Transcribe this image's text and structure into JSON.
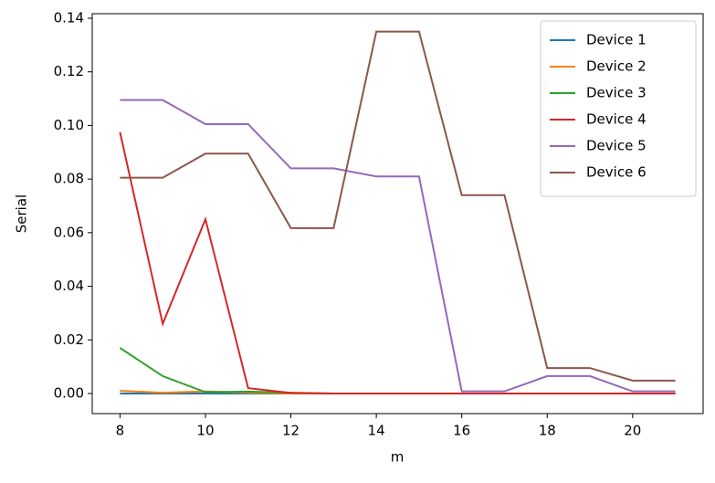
{
  "chart_data": {
    "type": "line",
    "x_label": "m",
    "y_label": "Serial",
    "x": [
      8,
      9,
      10,
      11,
      12,
      13,
      14,
      15,
      16,
      17,
      18,
      19,
      20,
      21
    ],
    "series": [
      {
        "name": "Device 1",
        "color": "#1f77b4",
        "values": [
          0,
          0,
          0,
          0,
          0,
          0,
          0,
          0,
          0,
          0,
          0,
          0,
          0,
          0
        ]
      },
      {
        "name": "Device 2",
        "color": "#ff7f0e",
        "values": [
          0.001,
          0.0003,
          0.0008,
          0.0003,
          0,
          0,
          0,
          0,
          0,
          0,
          0,
          0,
          0,
          0
        ]
      },
      {
        "name": "Device 3",
        "color": "#2ca02c",
        "values": [
          0.017,
          0.0065,
          0.0005,
          0.0007,
          0.0003,
          0,
          0,
          0,
          0,
          0,
          0,
          0,
          0,
          0
        ]
      },
      {
        "name": "Device 4",
        "color": "#d62728",
        "values": [
          0.0975,
          0.026,
          0.065,
          0.002,
          0.0002,
          0,
          0,
          0,
          0,
          0,
          0,
          0,
          0,
          0
        ]
      },
      {
        "name": "Device 5",
        "color": "#9467bd",
        "values": [
          0.1095,
          0.1095,
          0.1005,
          0.1005,
          0.084,
          0.084,
          0.081,
          0.081,
          0.0008,
          0.0008,
          0.0065,
          0.0065,
          0.0008,
          0.0008
        ]
      },
      {
        "name": "Device 6",
        "color": "#8c564b",
        "values": [
          0.0805,
          0.0805,
          0.0895,
          0.0895,
          0.0617,
          0.0617,
          0.135,
          0.135,
          0.074,
          0.074,
          0.0095,
          0.0095,
          0.0048,
          0.0048
        ]
      }
    ],
    "xlim": [
      7.35,
      21.65
    ],
    "xticks": [
      8,
      10,
      12,
      14,
      16,
      18,
      20
    ],
    "ylim": [
      -0.0075,
      0.1417
    ],
    "yticks": [
      {
        "value": 0,
        "label": "0.00"
      },
      {
        "value": 0.02,
        "label": "0.02"
      },
      {
        "value": 0.04,
        "label": "0.04"
      },
      {
        "value": 0.06,
        "label": "0.06"
      },
      {
        "value": 0.08,
        "label": "0.08"
      },
      {
        "value": 0.1,
        "label": "0.10"
      },
      {
        "value": 0.12,
        "label": "0.12"
      },
      {
        "value": 0.14,
        "label": "0.14"
      }
    ],
    "legend": "upper right"
  }
}
